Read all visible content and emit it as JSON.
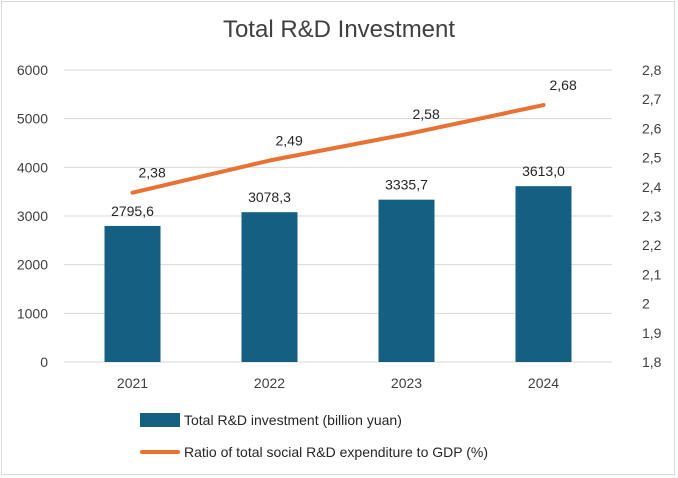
{
  "chart_data": {
    "type": "bar+line",
    "title": "Total R&D Investment",
    "categories": [
      "2021",
      "2022",
      "2023",
      "2024"
    ],
    "series": [
      {
        "name": "Total R&D investment (billion yuan)",
        "type": "bar",
        "axis": "left",
        "color": "#156082",
        "values": [
          2795.6,
          3078.3,
          3335.7,
          3613.0
        ],
        "labels": [
          "2795,6",
          "3078,3",
          "3335,7",
          "3613,0"
        ]
      },
      {
        "name": "Ratio of total social R&D expenditure to GDP (%)",
        "type": "line",
        "axis": "right",
        "color": "#E97132",
        "values": [
          2.38,
          2.49,
          2.58,
          2.68
        ],
        "labels": [
          "2,38",
          "2,49",
          "2,58",
          "2,68"
        ]
      }
    ],
    "y_left": {
      "min": 0,
      "max": 6000,
      "ticks": [
        0,
        1000,
        2000,
        3000,
        4000,
        5000,
        6000
      ],
      "tick_labels": [
        "0",
        "1000",
        "2000",
        "3000",
        "4000",
        "5000",
        "6000"
      ]
    },
    "y_right": {
      "min": 1.8,
      "max": 2.8,
      "ticks": [
        1.8,
        1.9,
        2.0,
        2.1,
        2.2,
        2.3,
        2.4,
        2.5,
        2.6,
        2.7,
        2.8
      ],
      "tick_labels": [
        "1,8",
        "1,9",
        "2",
        "2,1",
        "2,2",
        "2,3",
        "2,4",
        "2,5",
        "2,6",
        "2,7",
        "2,8"
      ]
    },
    "grid": true,
    "legend": "bottom"
  }
}
